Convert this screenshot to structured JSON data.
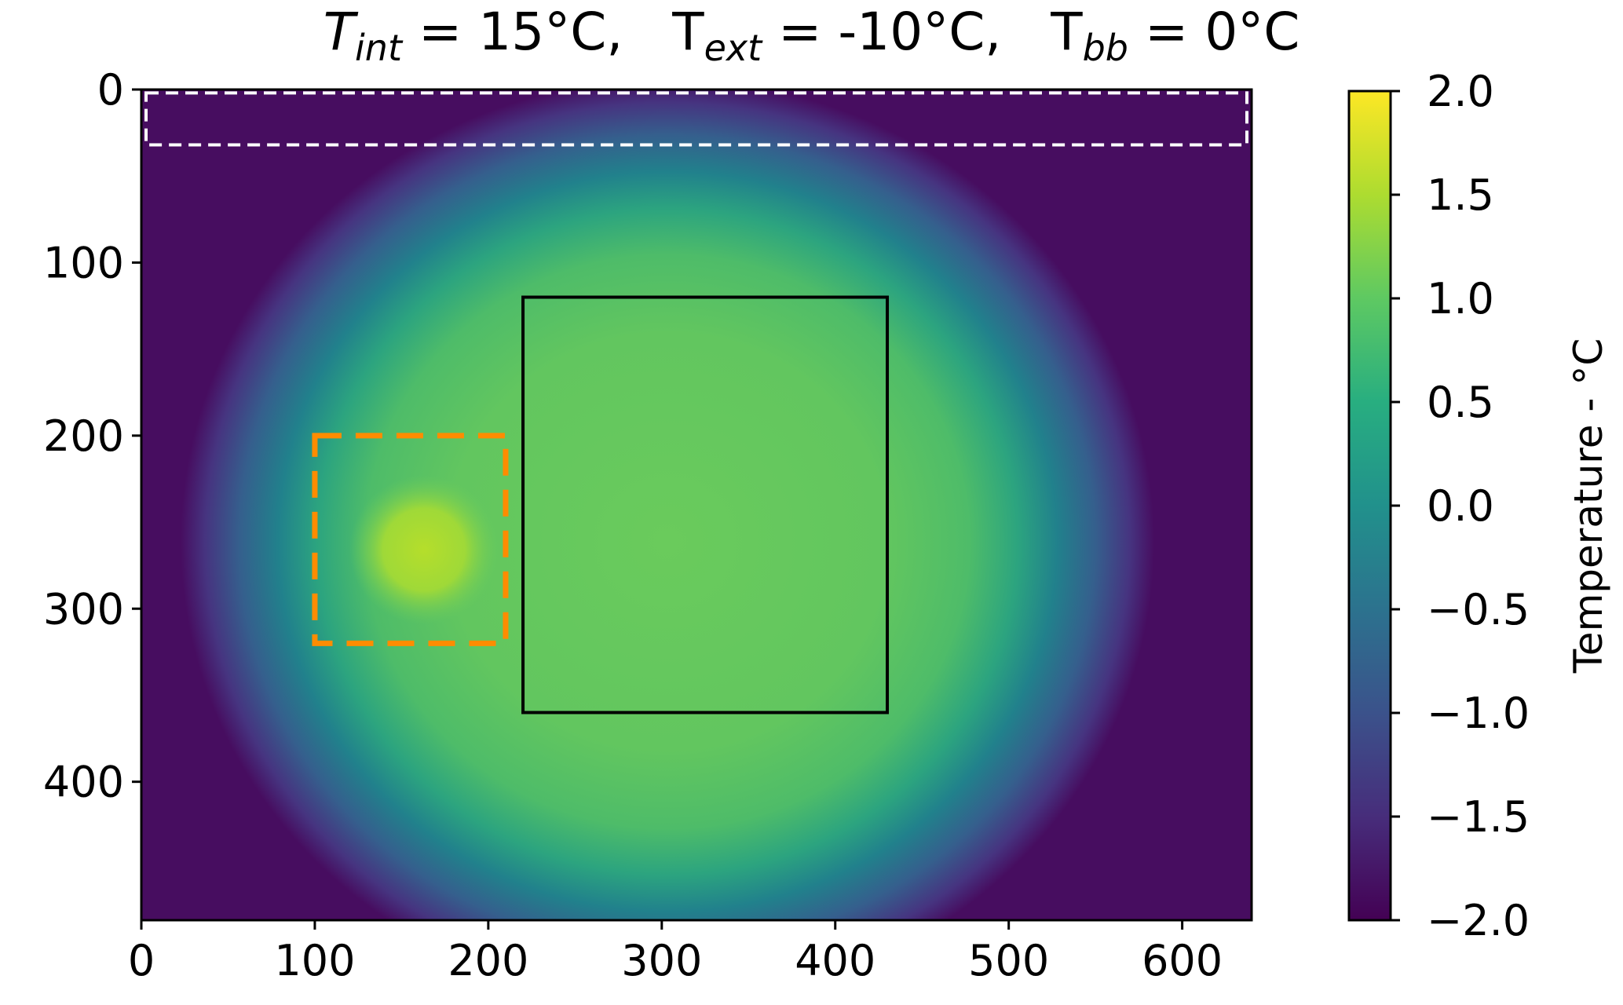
{
  "title": {
    "t_int": "T",
    "t_int_sub": "int",
    "t_int_val": " = 15°C,",
    "t_ext": "T",
    "t_ext_sub": "ext",
    "t_ext_val": " = -10°C,",
    "t_bb": "T",
    "t_bb_sub": "bb",
    "t_bb_val": " = 0°C"
  },
  "chart_data": {
    "type": "heatmap",
    "title": "T_int = 15°C,   T_ext = -10°C,   T_bb = 0°C",
    "xlim": [
      0,
      640
    ],
    "ylim": [
      480,
      0
    ],
    "x_ticks": [
      "0",
      "100",
      "200",
      "300",
      "400",
      "500",
      "600"
    ],
    "y_ticks": [
      "0",
      "100",
      "200",
      "300",
      "400"
    ],
    "colorbar": {
      "label": "Temperature - °C",
      "range": [
        -2.0,
        2.0
      ],
      "ticks": [
        "2.0",
        "1.5",
        "1.0",
        "0.5",
        "0.0",
        "−0.5",
        "−1.0",
        "−1.5",
        "−2.0"
      ],
      "colormap": "viridis"
    },
    "field": {
      "center_x": 310,
      "center_y": 250,
      "peak_value": 1.0,
      "hot_spot": {
        "x": 160,
        "y": 260,
        "value": 1.6
      },
      "edge_value": -2.0
    },
    "regions": [
      {
        "name": "reference strip",
        "style": "white dashed",
        "x": [
          0,
          640
        ],
        "y": [
          2,
          32
        ],
        "color": "#ffffff"
      },
      {
        "name": "hot spot box",
        "style": "orange dashed",
        "x": [
          100,
          210
        ],
        "y": [
          200,
          320
        ],
        "color": "#ff8c00"
      },
      {
        "name": "measurement area",
        "style": "black solid",
        "x": [
          220,
          430
        ],
        "y": [
          120,
          360
        ],
        "color": "#000000"
      }
    ]
  }
}
